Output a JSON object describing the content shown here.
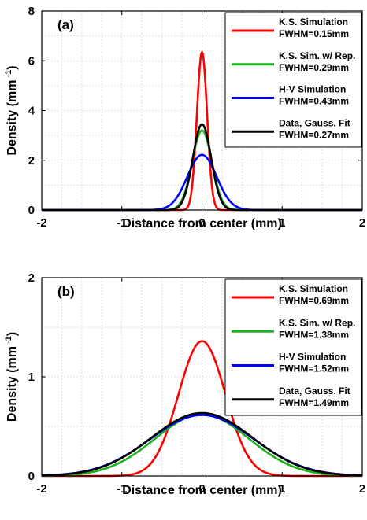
{
  "chart_data": [
    {
      "type": "line",
      "panel_label": "(a)",
      "xlabel": "Distance from center (mm)",
      "ylabel": "Density (mm",
      "ylabel_sup": "-1",
      "ylabel_close": ")",
      "xlim": [
        -2,
        2
      ],
      "ylim": [
        0,
        8
      ],
      "xticks": [
        -2,
        -1,
        0,
        1,
        2
      ],
      "yticks": [
        0,
        2,
        4,
        6,
        8
      ],
      "xticklabels": [
        "-2",
        "-1",
        "0",
        "1",
        "2"
      ],
      "yticklabels": [
        "0",
        "2",
        "4",
        "6",
        "8"
      ],
      "grid": true,
      "legend_position": "top-right",
      "series": [
        {
          "name": "K.S. Simulation",
          "name_line2": "FWHM=0.15mm",
          "color": "#ff0000",
          "amplitude": 6.35,
          "fwhm_mm": 0.15
        },
        {
          "name": "K.S. Sim. w/ Rep.",
          "name_line2": "FWHM=0.29mm",
          "color": "#1fb01f",
          "amplitude": 3.2,
          "fwhm_mm": 0.29
        },
        {
          "name": "H-V Simulation",
          "name_line2": "FWHM=0.43mm",
          "color": "#0000ff",
          "amplitude": 2.22,
          "fwhm_mm": 0.43
        },
        {
          "name": "Data, Gauss. Fit",
          "name_line2": "FWHM=0.27mm",
          "color": "#000000",
          "amplitude": 3.45,
          "fwhm_mm": 0.27
        }
      ]
    },
    {
      "type": "line",
      "panel_label": "(b)",
      "xlabel": "Distance from center (mm)",
      "ylabel": "Density (mm",
      "ylabel_sup": "-1",
      "ylabel_close": ")",
      "xlim": [
        -2,
        2
      ],
      "ylim": [
        0,
        2
      ],
      "xticks": [
        -2,
        -1,
        0,
        1,
        2
      ],
      "yticks": [
        0,
        1,
        2
      ],
      "xticklabels": [
        "-2",
        "-1",
        "0",
        "1",
        "2"
      ],
      "yticklabels": [
        "0",
        "1",
        "2"
      ],
      "grid": true,
      "legend_position": "top-right",
      "series": [
        {
          "name": "K.S. Simulation",
          "name_line2": "FWHM=0.69mm",
          "color": "#ff0000",
          "amplitude": 1.36,
          "fwhm_mm": 0.69
        },
        {
          "name": "K.S. Sim. w/ Rep.",
          "name_line2": "FWHM=1.38mm",
          "color": "#1fb01f",
          "amplitude": 0.62,
          "fwhm_mm": 1.38
        },
        {
          "name": "H-V Simulation",
          "name_line2": "FWHM=1.52mm",
          "color": "#0000ff",
          "amplitude": 0.615,
          "fwhm_mm": 1.52
        },
        {
          "name": "Data, Gauss. Fit",
          "name_line2": "FWHM=1.49mm",
          "color": "#000000",
          "amplitude": 0.635,
          "fwhm_mm": 1.49
        }
      ]
    }
  ]
}
